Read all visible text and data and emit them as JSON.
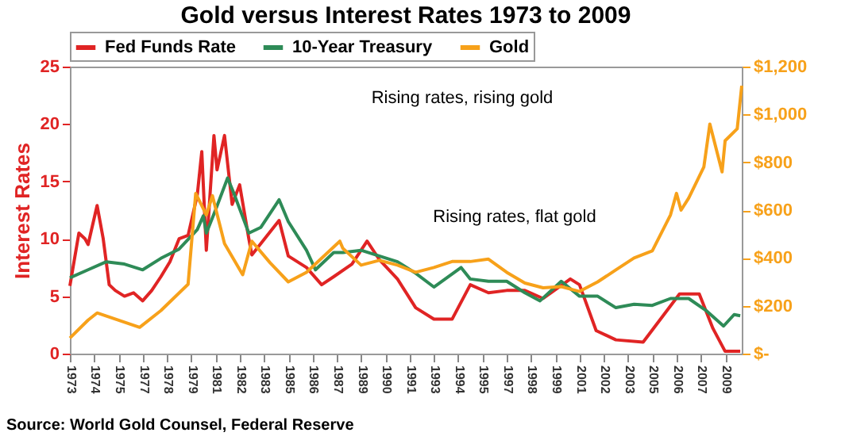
{
  "chart_data": {
    "type": "line",
    "title": "Gold versus Interest Rates 1973 to 2009",
    "ylabel": "Interest Rates",
    "xlim": [
      "1973-01",
      "2009-12"
    ],
    "xticks": [
      {
        "value": "1973-01",
        "label": "1973"
      },
      {
        "value": "1974-05",
        "label": "1974"
      },
      {
        "value": "1975-09",
        "label": "1975"
      },
      {
        "value": "1977-01",
        "label": "1977"
      },
      {
        "value": "1978-05",
        "label": "1978"
      },
      {
        "value": "1979-09",
        "label": "1979"
      },
      {
        "value": "1981-01",
        "label": "1981"
      },
      {
        "value": "1982-05",
        "label": "1982"
      },
      {
        "value": "1983-09",
        "label": "1983"
      },
      {
        "value": "1985-01",
        "label": "1985"
      },
      {
        "value": "1986-05",
        "label": "1986"
      },
      {
        "value": "1987-09",
        "label": "1987"
      },
      {
        "value": "1989-01",
        "label": "1989"
      },
      {
        "value": "1990-05",
        "label": "1990"
      },
      {
        "value": "1991-09",
        "label": "1991"
      },
      {
        "value": "1993-01",
        "label": "1993"
      },
      {
        "value": "1994-05",
        "label": "1994"
      },
      {
        "value": "1995-09",
        "label": "1995"
      },
      {
        "value": "1997-01",
        "label": "1997"
      },
      {
        "value": "1998-05",
        "label": "1998"
      },
      {
        "value": "1999-09",
        "label": "1999"
      },
      {
        "value": "2001-01",
        "label": "2001"
      },
      {
        "value": "2002-05",
        "label": "2002"
      },
      {
        "value": "2003-09",
        "label": "2003"
      },
      {
        "value": "2005-01",
        "label": "2005"
      },
      {
        "value": "2006-05",
        "label": "2006"
      },
      {
        "value": "2007-09",
        "label": "2007"
      },
      {
        "value": "2009-01",
        "label": "2009"
      }
    ],
    "ylim": [
      0,
      25
    ],
    "yticks": [
      0,
      5,
      10,
      15,
      20,
      25
    ],
    "y2lim": [
      0,
      1200
    ],
    "y2ticks": [
      {
        "value": 0,
        "label": "$-"
      },
      {
        "value": 200,
        "label": "$200"
      },
      {
        "value": 400,
        "label": "$400"
      },
      {
        "value": 600,
        "label": "$600"
      },
      {
        "value": 800,
        "label": "$800"
      },
      {
        "value": 1000,
        "label": "$1,000"
      },
      {
        "value": 1200,
        "label": "$1,200"
      }
    ],
    "legend": "top",
    "grid": false,
    "marker": "none",
    "line_style": "solid",
    "annotations": [
      "Rising rates, rising gold",
      "Rising rates, flat gold",
      "Source: World Gold Counsel, Federal Reserve"
    ],
    "series": [
      {
        "name": "Fed Funds Rate",
        "color": "#e02424",
        "x": [
          "1973-01",
          "1973-07",
          "1973-11",
          "1974-01",
          "1974-07",
          "1974-11",
          "1975-03",
          "1975-07",
          "1976-01",
          "1976-07",
          "1977-01",
          "1977-07",
          "1978-01",
          "1978-07",
          "1979-01",
          "1979-07",
          "1980-01",
          "1980-04",
          "1980-07",
          "1980-12",
          "1981-02",
          "1981-07",
          "1981-12",
          "1982-05",
          "1982-11",
          "1983-01",
          "1984-07",
          "1985-01",
          "1986-01",
          "1986-11",
          "1987-07",
          "1988-07",
          "1989-05",
          "1990-01",
          "1991-01",
          "1992-01",
          "1993-01",
          "1994-01",
          "1995-01",
          "1996-01",
          "1997-01",
          "1998-01",
          "1999-01",
          "2000-07",
          "2001-01",
          "2001-12",
          "2003-01",
          "2004-07",
          "2006-07",
          "2007-08",
          "2008-05",
          "2009-01",
          "2009-11"
        ],
        "values": [
          5.9,
          10.5,
          10,
          9.5,
          12.9,
          10,
          6,
          5.5,
          5,
          5.3,
          4.6,
          5.5,
          6.7,
          8,
          10,
          10.3,
          13.8,
          17.6,
          9,
          19,
          16,
          19,
          13,
          14.7,
          10,
          8.6,
          11.6,
          8.5,
          7.5,
          6,
          6.7,
          7.8,
          9.8,
          8.2,
          6.5,
          4,
          3,
          3,
          6,
          5.3,
          5.5,
          5.5,
          4.8,
          6.5,
          6,
          2,
          1.2,
          1,
          5.2,
          5.2,
          2.2,
          0.2,
          0.2
        ]
      },
      {
        "name": "10-Year Treasury",
        "color": "#2e8b57",
        "x": [
          "1973-01",
          "1974-01",
          "1975-01",
          "1976-01",
          "1977-01",
          "1978-01",
          "1979-01",
          "1980-01",
          "1980-05",
          "1980-07",
          "1981-01",
          "1981-09",
          "1982-01",
          "1982-11",
          "1983-07",
          "1984-07",
          "1985-01",
          "1986-01",
          "1986-07",
          "1987-07",
          "1988-01",
          "1989-01",
          "1990-01",
          "1991-01",
          "1992-01",
          "1993-01",
          "1994-07",
          "1995-01",
          "1996-01",
          "1997-01",
          "1998-01",
          "1998-11",
          "2000-01",
          "2001-01",
          "2002-01",
          "2003-01",
          "2004-01",
          "2005-01",
          "2006-01",
          "2007-01",
          "2008-01",
          "2008-12",
          "2009-07",
          "2009-11"
        ],
        "values": [
          6.6,
          7.3,
          8,
          7.8,
          7.3,
          8.3,
          9.1,
          10.8,
          12,
          10.5,
          12.5,
          15.3,
          14,
          10.5,
          11,
          13.4,
          11.5,
          9,
          7.3,
          8.8,
          8.8,
          9,
          8.5,
          8,
          7,
          5.8,
          7.5,
          6.5,
          6.3,
          6.3,
          5.3,
          4.6,
          6.3,
          5,
          5,
          4,
          4.3,
          4.2,
          4.8,
          4.8,
          3.7,
          2.4,
          3.4,
          3.3
        ]
      },
      {
        "name": "Gold",
        "color": "#f7a11a",
        "axis": "y2",
        "x": [
          "1973-01",
          "1974-01",
          "1974-07",
          "1976-11",
          "1978-01",
          "1979-07",
          "1979-12",
          "1980-07",
          "1980-11",
          "1981-07",
          "1982-07",
          "1983-01",
          "1984-01",
          "1985-01",
          "1986-01",
          "1987-11",
          "1988-01",
          "1989-01",
          "1990-01",
          "1991-01",
          "1992-01",
          "1993-01",
          "1994-01",
          "1995-01",
          "1996-01",
          "1997-01",
          "1998-01",
          "1999-01",
          "2000-01",
          "2001-01",
          "2002-01",
          "2003-01",
          "2004-01",
          "2005-01",
          "2006-01",
          "2006-05",
          "2006-08",
          "2007-01",
          "2007-11",
          "2008-03",
          "2008-11",
          "2009-01",
          "2009-09",
          "2009-12"
        ],
        "values": [
          65,
          140,
          170,
          110,
          180,
          290,
          670,
          580,
          660,
          460,
          330,
          470,
          380,
          300,
          340,
          470,
          440,
          370,
          390,
          370,
          340,
          360,
          385,
          385,
          395,
          340,
          295,
          275,
          280,
          260,
          300,
          350,
          400,
          430,
          580,
          670,
          600,
          650,
          780,
          960,
          760,
          890,
          940,
          1120
        ]
      }
    ]
  }
}
